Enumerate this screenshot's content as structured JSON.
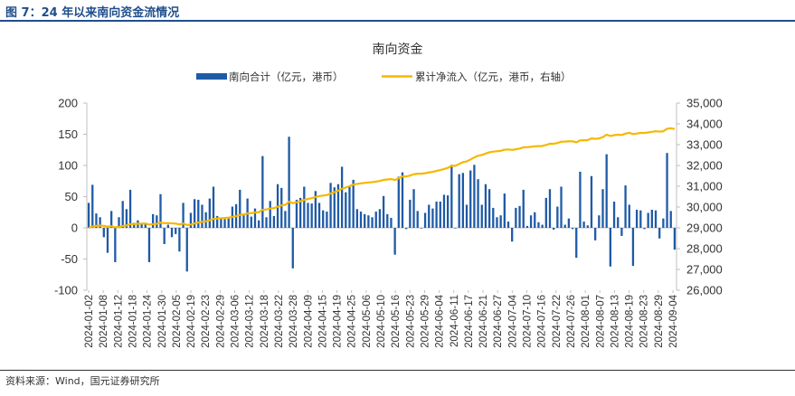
{
  "figure": {
    "title": "图 7：24 年以来南向资金流情况",
    "source": "资料来源：Wind，国元证券研究所",
    "colors": {
      "accent": "#1f4e8c",
      "bar": "#1f5aa6",
      "line": "#f5b800"
    }
  },
  "chart_data": {
    "type": "bar+line",
    "title": "南向资金",
    "legend": {
      "placement": "top-center"
    },
    "grid": false,
    "y_left": {
      "ylim": [
        -100,
        200
      ],
      "ticks": [
        -100,
        -50,
        0,
        50,
        100,
        150,
        200
      ]
    },
    "y_right": {
      "ylim": [
        26000,
        35000
      ],
      "ticks": [
        26000,
        27000,
        28000,
        29000,
        30000,
        31000,
        32000,
        33000,
        34000,
        35000
      ],
      "tick_labels": [
        "26,000",
        "27,000",
        "28,000",
        "29,000",
        "30,000",
        "31,000",
        "32,000",
        "33,000",
        "34,000",
        "35,000"
      ]
    },
    "x_tick_labels": [
      "2024-01-02",
      "2024-01-08",
      "2024-01-12",
      "2024-01-18",
      "2024-01-24",
      "2024-01-30",
      "2024-02-05",
      "2024-02-19",
      "2024-02-23",
      "2024-02-29",
      "2024-03-06",
      "2024-03-12",
      "2024-03-18",
      "2024-03-22",
      "2024-03-28",
      "2024-04-09",
      "2024-04-15",
      "2024-04-19",
      "2024-04-25",
      "2024-05-06",
      "2024-05-10",
      "2024-05-16",
      "2024-05-23",
      "2024-05-29",
      "2024-06-04",
      "2024-06-11",
      "2024-06-17",
      "2024-06-21",
      "2024-06-27",
      "2024-07-04",
      "2024-07-10",
      "2024-07-16",
      "2024-07-22",
      "2024-07-26",
      "2024-08-01",
      "2024-08-07",
      "2024-08-13",
      "2024-08-19",
      "2024-08-23",
      "2024-08-29",
      "2024-09-04"
    ],
    "series": [
      {
        "name": "南向合计（亿元，港币）",
        "type": "bar",
        "axis": "left",
        "values": [
          40,
          69,
          23,
          17,
          -15,
          -40,
          27,
          -55,
          17,
          43,
          30,
          61,
          8,
          12,
          7,
          6,
          -55,
          22,
          20,
          54,
          -26,
          5,
          -15,
          -10,
          -38,
          40,
          -70,
          24,
          46,
          45,
          37,
          25,
          47,
          66,
          19,
          15,
          14,
          15,
          34,
          38,
          61,
          20,
          47,
          18,
          31,
          12,
          115,
          17,
          43,
          19,
          70,
          64,
          27,
          146,
          -65,
          45,
          48,
          66,
          40,
          39,
          59,
          40,
          28,
          26,
          72,
          65,
          70,
          98,
          57,
          66,
          77,
          30,
          26,
          22,
          20,
          17,
          26,
          30,
          51,
          22,
          16,
          -43,
          82,
          89,
          -2,
          45,
          62,
          27,
          -1,
          24,
          37,
          31,
          42,
          42,
          53,
          52,
          101,
          -1,
          86,
          88,
          37,
          92,
          101,
          78,
          37,
          70,
          62,
          32,
          17,
          20,
          55,
          10,
          -22,
          32,
          35,
          61,
          3,
          20,
          25,
          9,
          5,
          48,
          62,
          -3,
          34,
          66,
          5,
          15,
          -2,
          -48,
          90,
          10,
          4,
          83,
          -20,
          20,
          62,
          118,
          -62,
          42,
          17,
          -13,
          68,
          37,
          -61,
          29,
          28,
          -2,
          24,
          29,
          28,
          -17,
          15,
          120,
          27,
          -35
        ]
      },
      {
        "name": "累计净流入（亿元，港币，右轴）",
        "type": "line",
        "axis": "right",
        "values": [
          29000,
          29069,
          29092,
          29109,
          29094,
          29054,
          29081,
          29026,
          29043,
          29086,
          29116,
          29177,
          29185,
          29197,
          29204,
          29210,
          29155,
          29177,
          29197,
          29251,
          29225,
          29230,
          29215,
          29205,
          29167,
          29207,
          29137,
          29161,
          29207,
          29252,
          29289,
          29314,
          29361,
          29427,
          29446,
          29461,
          29475,
          29490,
          29524,
          29562,
          29623,
          29643,
          29690,
          29708,
          29739,
          29751,
          29866,
          29883,
          29926,
          29945,
          30015,
          30079,
          30106,
          30252,
          30187,
          30232,
          30280,
          30346,
          30386,
          30425,
          30484,
          30524,
          30552,
          30578,
          30650,
          30715,
          30785,
          30883,
          30940,
          31006,
          31083,
          31113,
          31139,
          31161,
          31181,
          31198,
          31224,
          31254,
          31305,
          31327,
          31343,
          31300,
          31382,
          31471,
          31469,
          31514,
          31576,
          31603,
          31602,
          31626,
          31663,
          31694,
          31736,
          31778,
          31831,
          31883,
          31984,
          31983,
          32069,
          32157,
          32194,
          32286,
          32387,
          32465,
          32502,
          32572,
          32634,
          32666,
          32683,
          32703,
          32758,
          32768,
          32746,
          32778,
          32813,
          32874,
          32877,
          32897,
          32922,
          32931,
          32936,
          32984,
          33046,
          33043,
          33077,
          33143,
          33148,
          33163,
          33161,
          33113,
          33203,
          33213,
          33217,
          33300,
          33280,
          33300,
          33362,
          33480,
          33418,
          33460,
          33477,
          33464,
          33532,
          33569,
          33508,
          33537,
          33565,
          33563,
          33587,
          33616,
          33644,
          33627,
          33642,
          33762,
          33789,
          33754
        ]
      }
    ]
  }
}
